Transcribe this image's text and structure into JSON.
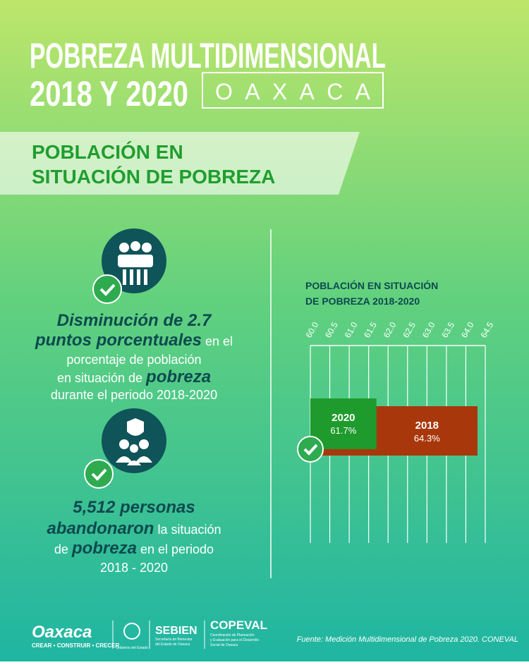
{
  "header": {
    "title_line1": "POBREZA MULTIDIMENSIONAL",
    "title_line2": "2018 Y 2020",
    "state": "O A X A C A"
  },
  "section_title": [
    "POBLACIÓN EN",
    "SITUACIÓN DE POBREZA"
  ],
  "stat1": [
    [
      {
        "text": "Disminución de 2.7",
        "emphasis": true
      }
    ],
    [
      {
        "text": "puntos porcentuales",
        "emphasis": true
      },
      {
        "text": " en el",
        "emphasis": false
      }
    ],
    [
      {
        "text": "porcentaje de población",
        "emphasis": false
      }
    ],
    [
      {
        "text": "en situación de ",
        "emphasis": false
      },
      {
        "text": "pobreza",
        "emphasis": true
      }
    ],
    [
      {
        "text": "durante el periodo 2018-2020",
        "emphasis": false
      }
    ]
  ],
  "stat2": [
    [
      {
        "text": "5,512 personas",
        "emphasis": true
      }
    ],
    [
      {
        "text": "abandonaron",
        "emphasis": true
      },
      {
        "text": " la situación",
        "emphasis": false
      }
    ],
    [
      {
        "text": "de ",
        "emphasis": false
      },
      {
        "text": "pobreza",
        "emphasis": true
      },
      {
        "text": " en el periodo",
        "emphasis": false
      }
    ],
    [
      {
        "text": "2018 - 2020",
        "emphasis": false
      }
    ]
  ],
  "chart_data": {
    "type": "bar",
    "orientation": "horizontal",
    "title": [
      "POBLACIÓN EN SITUACIÓN",
      "DE POBREZA 2018-2020"
    ],
    "categories": [
      "2020",
      "2018"
    ],
    "values": [
      61.7,
      64.3
    ],
    "value_labels": [
      "61.7%",
      "64.3%"
    ],
    "colors": [
      "#1e9b2c",
      "#a8380c"
    ],
    "xlim": [
      60,
      64.5
    ],
    "xticks": [
      {
        "value": 60,
        "label": "60.0"
      },
      60.5,
      {
        "value": 61,
        "label": "61.0"
      },
      61.5,
      {
        "value": 62,
        "label": "62.0"
      },
      62.5,
      {
        "value": 63,
        "label": "63.0"
      },
      63.5,
      {
        "value": 64,
        "label": "64.0"
      },
      64.5
    ],
    "grid": true
  },
  "footer": {
    "logo": "Oaxaca",
    "motto": "CREAR • CONSTRUIR • CRECER",
    "government": "Gobierno del Estado",
    "sebien": "SEBIEN",
    "sebien_sub": [
      "Secretaría de Bienestar",
      "del Estado de Oaxaca"
    ],
    "copeval": "COPEVAL",
    "copeval_sub": [
      "Coordinación de Planeación",
      "y Evaluación para el Desarrollo",
      "Social de Oaxaca"
    ],
    "source": "Fuente: Medición Multidimensional de Pobreza 2020. CONEVAL"
  }
}
